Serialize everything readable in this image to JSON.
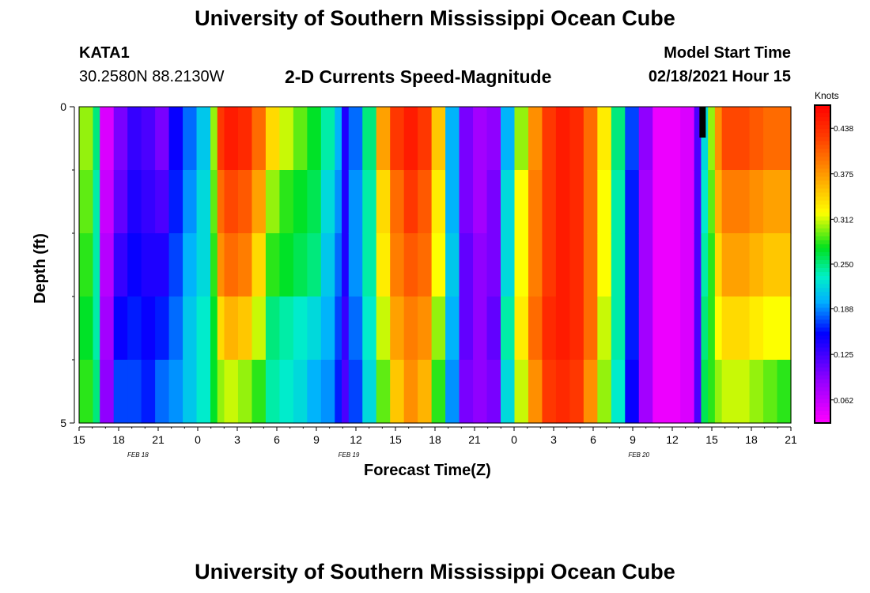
{
  "header": {
    "title": "University of Southern Mississippi Ocean Cube",
    "station": "KATA1",
    "coordinates": "30.2580N 88.2130W",
    "subtitle": "2-D Currents Speed-Magnitude",
    "model_start_label": "Model Start Time",
    "model_start_value": "02/18/2021 Hour 15"
  },
  "footer": {
    "title": "University of Southern Mississippi Ocean Cube"
  },
  "chart_data": {
    "type": "heatmap",
    "title": "2-D Currents Speed-Magnitude",
    "xlabel": "Forecast Time(Z)",
    "ylabel": "Depth (ft)",
    "y_tick_labels": [
      "0",
      "5"
    ],
    "ylim": [
      0,
      5
    ],
    "x_tick_labels": [
      "15",
      "18",
      "21",
      "0",
      "3",
      "6",
      "9",
      "12",
      "15",
      "18",
      "21",
      "0",
      "3",
      "6",
      "9",
      "12",
      "15",
      "18",
      "21"
    ],
    "date_labels": [
      {
        "text": "FEB 18",
        "at_hour": 19.5
      },
      {
        "text": "FEB 19",
        "at_hour": 35.5
      },
      {
        "text": "FEB 20",
        "at_hour": 57.5
      }
    ],
    "x_range_hours": [
      0,
      54
    ],
    "colorbar": {
      "units": "Knots",
      "ticks": [
        "0.062",
        "0.125",
        "0.188",
        "0.250",
        "0.312",
        "0.375",
        "0.438"
      ],
      "range": [
        0.03,
        0.47
      ]
    },
    "depth_rows": [
      0.5,
      1.5,
      2.5,
      3.5,
      4.5
    ],
    "columns": [
      {
        "v": [
          0.3,
          0.29,
          0.28,
          0.27,
          0.28
        ],
        "w": 1
      },
      {
        "v": [
          0.25,
          0.24,
          0.24,
          0.24,
          0.25
        ],
        "w": 0.5
      },
      {
        "v": [
          0.05,
          0.06,
          0.07,
          0.08,
          0.09
        ],
        "w": 1
      },
      {
        "v": [
          0.1,
          0.11,
          0.13,
          0.15,
          0.17
        ],
        "w": 1
      },
      {
        "v": [
          0.13,
          0.14,
          0.15,
          0.16,
          0.17
        ],
        "w": 1
      },
      {
        "v": [
          0.12,
          0.13,
          0.14,
          0.15,
          0.16
        ],
        "w": 1
      },
      {
        "v": [
          0.1,
          0.12,
          0.14,
          0.16,
          0.18
        ],
        "w": 1
      },
      {
        "v": [
          0.15,
          0.16,
          0.17,
          0.18,
          0.19
        ],
        "w": 1
      },
      {
        "v": [
          0.18,
          0.19,
          0.2,
          0.21,
          0.21
        ],
        "w": 1
      },
      {
        "v": [
          0.21,
          0.22,
          0.22,
          0.23,
          0.23
        ],
        "w": 1
      },
      {
        "v": [
          0.3,
          0.29,
          0.28,
          0.27,
          0.27
        ],
        "w": 0.5
      },
      {
        "v": [
          0.43,
          0.4,
          0.38,
          0.34,
          0.3
        ],
        "w": 0.5
      },
      {
        "v": [
          0.45,
          0.42,
          0.4,
          0.36,
          0.31
        ],
        "w": 1
      },
      {
        "v": [
          0.44,
          0.41,
          0.39,
          0.35,
          0.3
        ],
        "w": 1
      },
      {
        "v": [
          0.4,
          0.37,
          0.34,
          0.31,
          0.28
        ],
        "w": 1
      },
      {
        "v": [
          0.34,
          0.3,
          0.28,
          0.25,
          0.24
        ],
        "w": 1
      },
      {
        "v": [
          0.31,
          0.28,
          0.27,
          0.24,
          0.23
        ],
        "w": 1
      },
      {
        "v": [
          0.29,
          0.27,
          0.26,
          0.23,
          0.22
        ],
        "w": 1
      },
      {
        "v": [
          0.27,
          0.26,
          0.25,
          0.22,
          0.2
        ],
        "w": 1
      },
      {
        "v": [
          0.24,
          0.22,
          0.21,
          0.2,
          0.19
        ],
        "w": 1
      },
      {
        "v": [
          0.2,
          0.19,
          0.18,
          0.17,
          0.16
        ],
        "w": 0.5
      },
      {
        "v": [
          0.14,
          0.14,
          0.14,
          0.13,
          0.12
        ],
        "w": 0.5
      },
      {
        "v": [
          0.18,
          0.19,
          0.19,
          0.18,
          0.17
        ],
        "w": 1
      },
      {
        "v": [
          0.25,
          0.24,
          0.24,
          0.23,
          0.22
        ],
        "w": 1
      },
      {
        "v": [
          0.37,
          0.34,
          0.33,
          0.31,
          0.29
        ],
        "w": 1
      },
      {
        "v": [
          0.43,
          0.4,
          0.39,
          0.37,
          0.35
        ],
        "w": 1
      },
      {
        "v": [
          0.45,
          0.43,
          0.41,
          0.39,
          0.38
        ],
        "w": 1
      },
      {
        "v": [
          0.43,
          0.41,
          0.4,
          0.38,
          0.36
        ],
        "w": 1
      },
      {
        "v": [
          0.35,
          0.33,
          0.32,
          0.3,
          0.28
        ],
        "w": 1
      },
      {
        "v": [
          0.2,
          0.2,
          0.21,
          0.2,
          0.19
        ],
        "w": 1
      },
      {
        "v": [
          0.1,
          0.1,
          0.11,
          0.11,
          0.1
        ],
        "w": 1
      },
      {
        "v": [
          0.08,
          0.08,
          0.09,
          0.09,
          0.09
        ],
        "w": 1
      },
      {
        "v": [
          0.09,
          0.1,
          0.1,
          0.11,
          0.1
        ],
        "w": 1
      },
      {
        "v": [
          0.2,
          0.22,
          0.22,
          0.24,
          0.22
        ],
        "w": 1
      },
      {
        "v": [
          0.3,
          0.32,
          0.32,
          0.33,
          0.31
        ],
        "w": 1
      },
      {
        "v": [
          0.38,
          0.39,
          0.39,
          0.4,
          0.38
        ],
        "w": 1
      },
      {
        "v": [
          0.43,
          0.43,
          0.43,
          0.44,
          0.43
        ],
        "w": 1
      },
      {
        "v": [
          0.45,
          0.45,
          0.45,
          0.45,
          0.44
        ],
        "w": 1
      },
      {
        "v": [
          0.44,
          0.44,
          0.44,
          0.44,
          0.43
        ],
        "w": 1
      },
      {
        "v": [
          0.4,
          0.4,
          0.4,
          0.4,
          0.38
        ],
        "w": 1
      },
      {
        "v": [
          0.33,
          0.32,
          0.32,
          0.31,
          0.3
        ],
        "w": 1
      },
      {
        "v": [
          0.25,
          0.24,
          0.24,
          0.24,
          0.23
        ],
        "w": 1
      },
      {
        "v": [
          0.17,
          0.16,
          0.16,
          0.16,
          0.15
        ],
        "w": 1
      },
      {
        "v": [
          0.09,
          0.08,
          0.08,
          0.08,
          0.08
        ],
        "w": 1
      },
      {
        "v": [
          0.04,
          0.04,
          0.04,
          0.04,
          0.04
        ],
        "w": 1
      },
      {
        "v": [
          0.04,
          0.04,
          0.04,
          0.04,
          0.04
        ],
        "w": 1
      },
      {
        "v": [
          0.05,
          0.05,
          0.05,
          0.05,
          0.05
        ],
        "w": 1
      },
      {
        "v": [
          0.12,
          0.12,
          0.12,
          0.12,
          0.12
        ],
        "w": 0.5
      },
      {
        "v": [
          0.22,
          0.23,
          0.24,
          0.25,
          0.26
        ],
        "w": 0.5
      },
      {
        "v": [
          0.3,
          0.29,
          0.28,
          0.28,
          0.28
        ],
        "w": 0.5
      },
      {
        "v": [
          0.38,
          0.36,
          0.34,
          0.32,
          0.3
        ],
        "w": 0.5
      },
      {
        "v": [
          0.42,
          0.39,
          0.37,
          0.34,
          0.31
        ],
        "w": 1
      },
      {
        "v": [
          0.42,
          0.39,
          0.37,
          0.34,
          0.31
        ],
        "w": 1
      },
      {
        "v": [
          0.41,
          0.38,
          0.36,
          0.33,
          0.3
        ],
        "w": 1
      },
      {
        "v": [
          0.4,
          0.37,
          0.35,
          0.32,
          0.29
        ],
        "w": 1
      },
      {
        "v": [
          0.4,
          0.37,
          0.35,
          0.32,
          0.28
        ],
        "w": 1
      }
    ],
    "missing_marker": {
      "hour": 47.3,
      "depth_from": 0,
      "depth_to": 0.5,
      "color": "#000000"
    }
  }
}
